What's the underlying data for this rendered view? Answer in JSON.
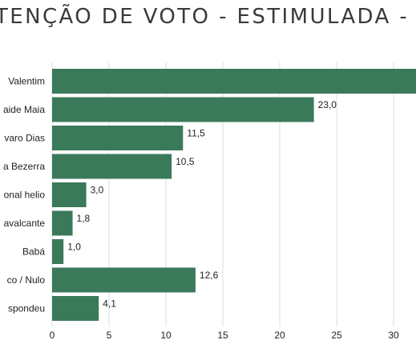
{
  "chart_data": {
    "type": "bar",
    "orientation": "horizontal",
    "title": "TENÇÃO DE VOTO - ESTIMULADA - V",
    "categories": [
      "Valentim",
      "aide Maia",
      "varo Dias",
      "a Bezerra",
      "onal helio",
      "avalcante",
      "Babá",
      "co / Nulo",
      "spondeu"
    ],
    "values": [
      null,
      23.0,
      11.5,
      10.5,
      3.0,
      1.8,
      1.0,
      12.6,
      4.1
    ],
    "value_labels": [
      "",
      "23,0",
      "11,5",
      "10,5",
      "3,0",
      "1,8",
      "1,0",
      "12,6",
      "4,1"
    ],
    "xticks": [
      "0",
      "5",
      "10",
      "15",
      "20",
      "25",
      "30"
    ],
    "xlim": [
      0,
      32
    ],
    "grid": true,
    "bar_color": "#3a7a5a",
    "grid_color": "#dddddd"
  }
}
